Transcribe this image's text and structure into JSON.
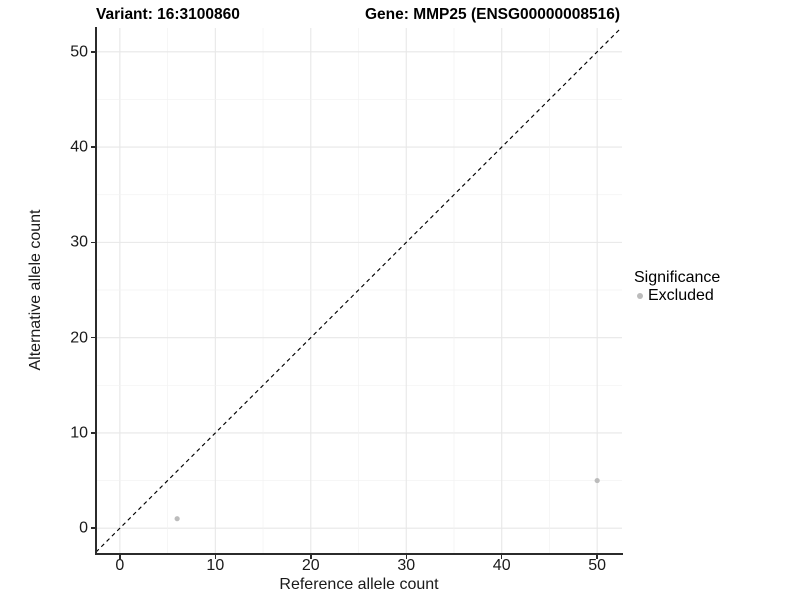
{
  "titles": {
    "variant": "Variant: 16:3100860",
    "gene": "Gene: MMP25 (ENSG00000008516)"
  },
  "axes": {
    "x": {
      "label": "Reference allele count",
      "ticks": [
        0,
        10,
        20,
        30,
        40,
        50
      ]
    },
    "y": {
      "label": "Alternative allele count",
      "ticks": [
        0,
        10,
        20,
        30,
        40,
        50
      ]
    }
  },
  "legend": {
    "title": "Significance",
    "items": [
      {
        "label": "Excluded",
        "color": "#bcbcbc",
        "marker": "circle-icon"
      }
    ]
  },
  "colors": {
    "background": "#ffffff",
    "axis_line": "#2b2b2b",
    "tick_text": "#1a1a1a",
    "grid_major": "#e7e7e7",
    "grid_minor": "#f2f2f2",
    "identity_line": "#000000",
    "point_excluded": "#bcbcbc"
  },
  "chart_data": {
    "type": "scatter",
    "title": "Variant: 16:3100860 / Gene: MMP25 (ENSG00000008516)",
    "xlabel": "Reference allele count",
    "ylabel": "Alternative allele count",
    "xlim": [
      -2.5,
      52.6
    ],
    "ylim": [
      -2.6,
      52.5
    ],
    "x_ticks": [
      0,
      10,
      20,
      30,
      40,
      50
    ],
    "y_ticks": [
      0,
      10,
      20,
      30,
      40,
      50
    ],
    "grid": "major every 10, minor every 5, both axes 0-50",
    "legend_position": "right-middle",
    "series": [
      {
        "name": "Excluded",
        "color": "#bcbcbc",
        "marker": "circle",
        "point_radius": 2.6,
        "points": [
          [
            6,
            1
          ],
          [
            50,
            5
          ]
        ]
      }
    ],
    "reference_line": {
      "kind": "identity y=x",
      "style": "dashed",
      "color": "#000000",
      "from": [
        -2.5,
        -2.5
      ],
      "to": [
        52.6,
        52.6
      ]
    }
  }
}
